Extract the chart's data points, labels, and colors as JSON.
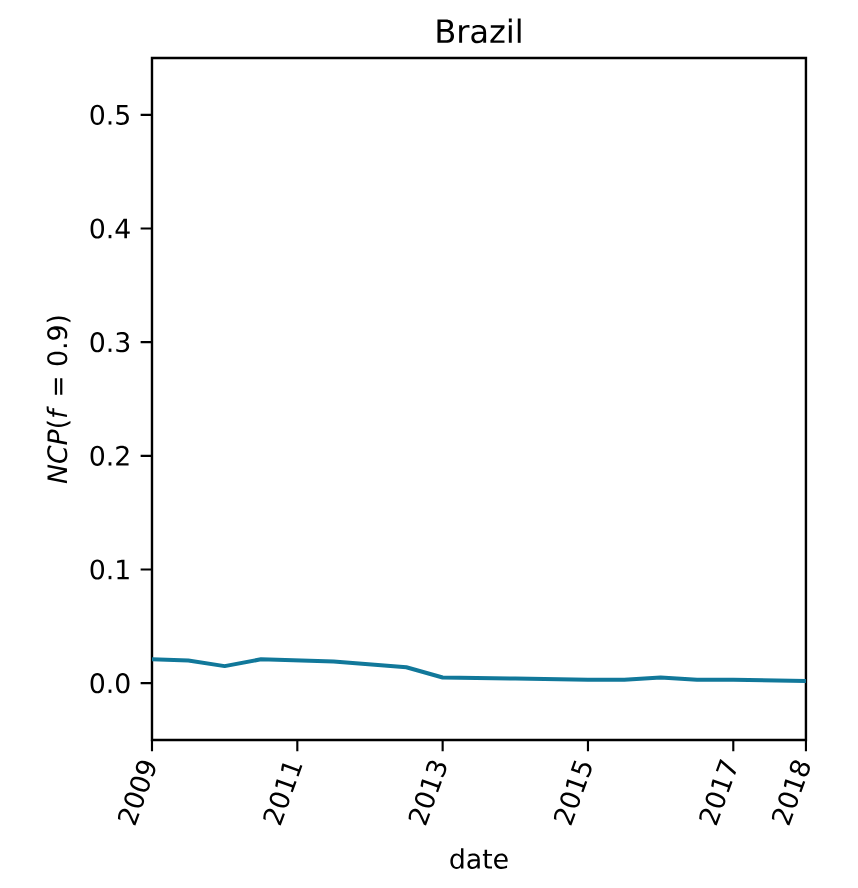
{
  "chart_data": {
    "type": "line",
    "title": "Brazil",
    "xlabel": "date",
    "ylabel": "*NCP*(*f* = 0.9)",
    "x": [
      "2009-01",
      "2009-07",
      "2010-01",
      "2010-07",
      "2011-01",
      "2011-07",
      "2012-07",
      "2013-01",
      "2014-01",
      "2015-01",
      "2015-07",
      "2016-01",
      "2016-07",
      "2017-01",
      "2018-01"
    ],
    "series": [
      {
        "color": "#11789a",
        "values": [
          0.021,
          0.02,
          0.015,
          0.021,
          0.02,
          0.019,
          0.014,
          0.005,
          0.004,
          0.003,
          0.003,
          0.005,
          0.003,
          0.003,
          0.002
        ]
      }
    ],
    "xlim": [
      "2009",
      "2018"
    ],
    "ylim": [
      -0.05,
      0.55
    ],
    "xticks": [
      "2009",
      "2011",
      "2013",
      "2015",
      "2017",
      "2018"
    ],
    "yticks": [
      {
        "value": 0,
        "label": "0.0"
      },
      {
        "value": 0.1,
        "label": "0.1"
      },
      {
        "value": 0.2,
        "label": "0.2"
      },
      {
        "value": 0.3,
        "label": "0.3"
      },
      {
        "value": 0.4,
        "label": "0.4"
      },
      {
        "value": 0.5,
        "label": "0.5"
      }
    ],
    "grid": false,
    "marker": "none",
    "line_style": "solid"
  }
}
